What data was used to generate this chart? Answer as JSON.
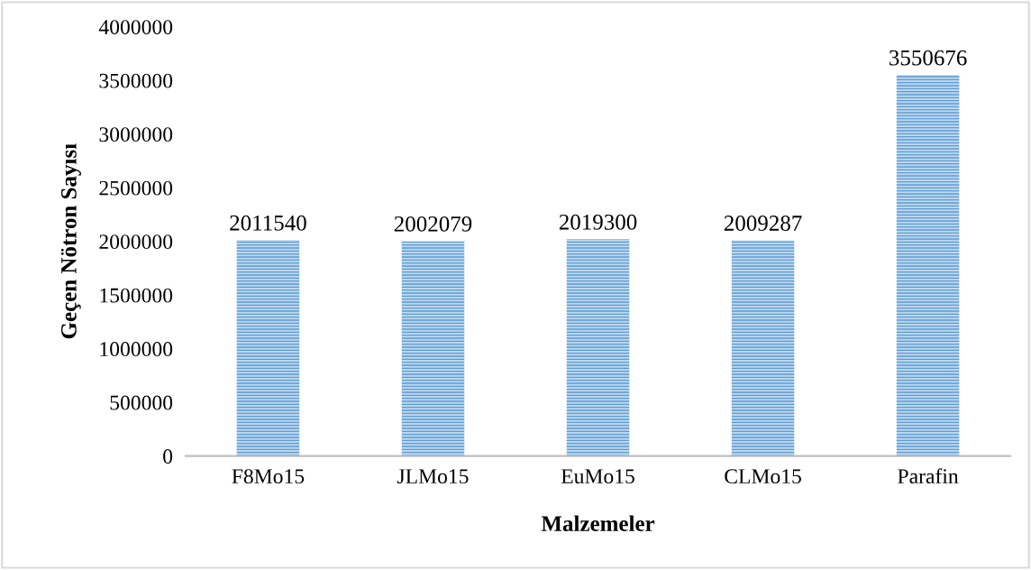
{
  "chart_data": {
    "type": "bar",
    "xlabel": "Malzemeler",
    "ylabel": "Geçen Nötron Sayısı",
    "categories": [
      "F8Mo15",
      "JLMo15",
      "EuMo15",
      "CLMo15",
      "Parafin"
    ],
    "values": [
      2011540,
      2002079,
      2019300,
      2009287,
      3550676
    ],
    "color": "#5b9bd5",
    "ylim": [
      0,
      4000000
    ],
    "yticks": [
      0,
      500000,
      1000000,
      1500000,
      2000000,
      2500000,
      3000000,
      3500000,
      4000000
    ],
    "grid": false,
    "data_labels": true
  }
}
